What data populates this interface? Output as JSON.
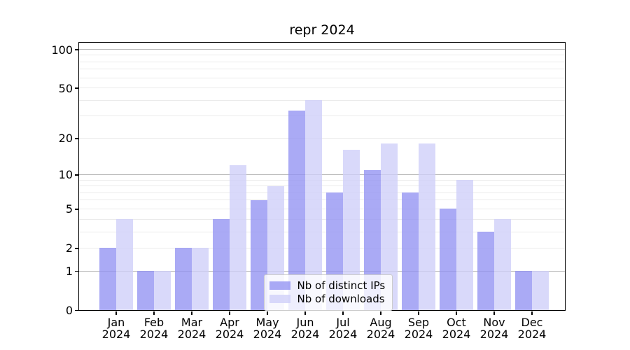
{
  "chart_data": {
    "type": "bar",
    "title": "repr 2024",
    "yscale": "log1p",
    "categories": [
      "Jan 2024",
      "Feb 2024",
      "Mar 2024",
      "Apr 2024",
      "May 2024",
      "Jun 2024",
      "Jul 2024",
      "Aug 2024",
      "Sep 2024",
      "Oct 2024",
      "Nov 2024",
      "Dec 2024"
    ],
    "months": [
      "Jan",
      "Feb",
      "Mar",
      "Apr",
      "May",
      "Jun",
      "Jul",
      "Aug",
      "Sep",
      "Oct",
      "Nov",
      "Dec"
    ],
    "year_label": "2024",
    "series": [
      {
        "name": "Nb of distinct IPs",
        "color": "#9292f2",
        "alpha": 0.78,
        "values": [
          2,
          1,
          2,
          4,
          6,
          33,
          7,
          11,
          7,
          5,
          3,
          1
        ]
      },
      {
        "name": "Nb of downloads",
        "color": "#cecef9",
        "alpha": 0.78,
        "values": [
          4,
          1,
          2,
          12,
          8,
          40,
          16,
          18,
          18,
          9,
          4,
          1
        ]
      }
    ],
    "y_ticks": [
      0,
      1,
      2,
      5,
      10,
      20,
      50,
      100
    ],
    "major_grid_values": [
      1,
      10,
      100
    ],
    "minor_grid_values": [
      2,
      3,
      4,
      5,
      6,
      7,
      8,
      9,
      20,
      30,
      40,
      50,
      60,
      70,
      80,
      90
    ],
    "ylim": [
      0,
      113.4
    ],
    "layout_hints": {
      "grid": "on",
      "legend_location": "lower center",
      "bar_arrangement": "side-by-side pairs per month"
    },
    "colors": {
      "background": "#ffffff",
      "axis_spine": "#000000",
      "major_grid": "#b8b8b8",
      "minor_grid": "#ebebeb",
      "text": "#000000",
      "legend_border": "#cccccc"
    }
  }
}
